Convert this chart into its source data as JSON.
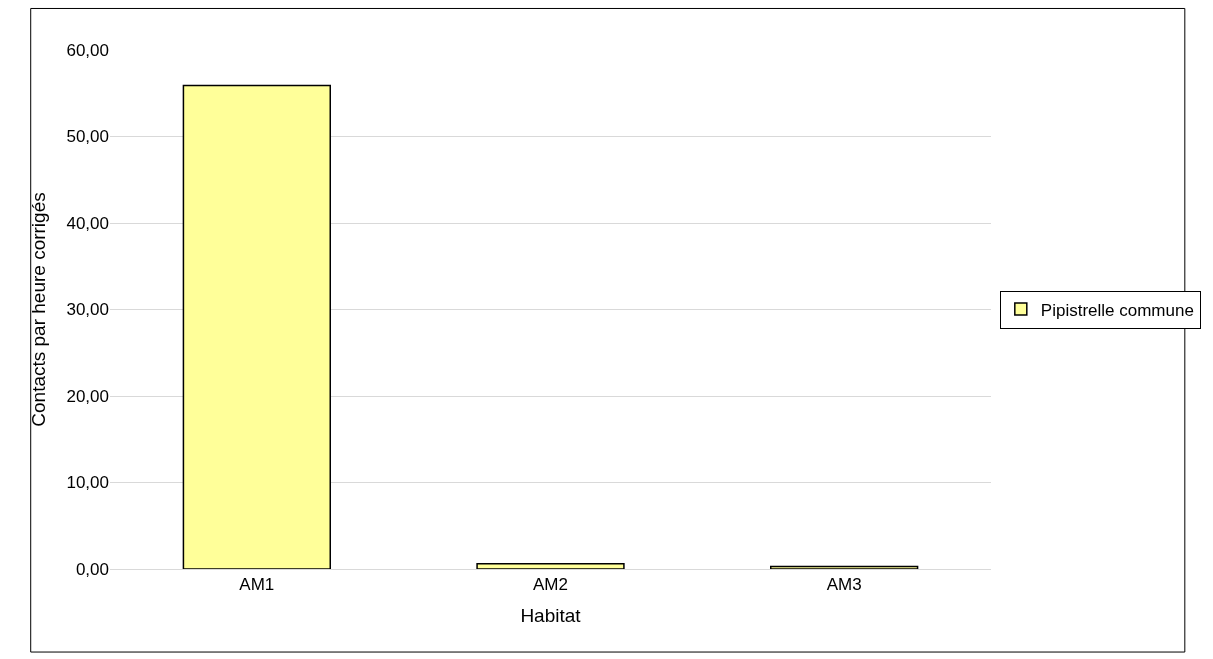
{
  "chart_data": {
    "type": "bar",
    "xlabel": "Habitat",
    "ylabel": "Contacts par heure corrigés",
    "categories": [
      "AM1",
      "AM2",
      "AM3"
    ],
    "series": [
      {
        "name": "Pipistrelle commune",
        "color": "#ffff99",
        "values": [
          55.9,
          0.6,
          0.3
        ]
      }
    ],
    "ylim": [
      0,
      60
    ],
    "yticks": [
      {
        "value": 0,
        "label": "0,00"
      },
      {
        "value": 10,
        "label": "10,00"
      },
      {
        "value": 20,
        "label": "20,00"
      },
      {
        "value": 30,
        "label": "30,00"
      },
      {
        "value": 40,
        "label": "40,00"
      },
      {
        "value": 50,
        "label": "50,00"
      },
      {
        "value": 60,
        "label": "60,00"
      }
    ],
    "grid": "y",
    "legend": "right"
  }
}
